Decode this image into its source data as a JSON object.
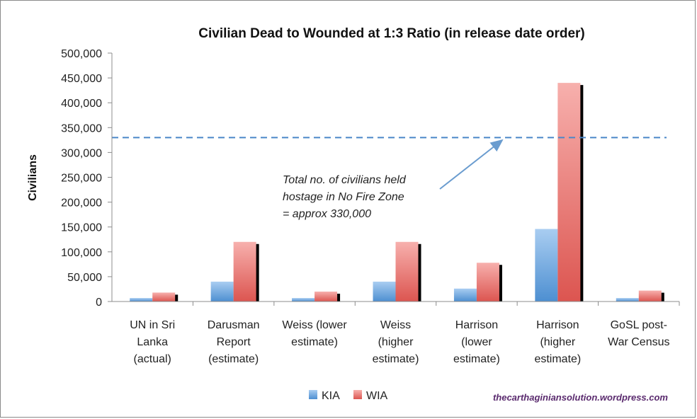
{
  "chart_data": {
    "type": "bar",
    "title": "Civilian Dead to Wounded at 1:3 Ratio (in release date order)",
    "ylabel": "Civilians",
    "xlabel": "",
    "ylim": [
      0,
      500000
    ],
    "yticks": [
      0,
      50000,
      100000,
      150000,
      200000,
      250000,
      300000,
      350000,
      400000,
      450000,
      500000
    ],
    "ytick_labels": [
      "0",
      "50,000",
      "100,000",
      "150,000",
      "200,000",
      "250,000",
      "300,000",
      "350,000",
      "400,000",
      "450,000",
      "500,000"
    ],
    "categories": [
      [
        "UN in Sri",
        "Lanka",
        "(actual)"
      ],
      [
        "Darusman",
        "Report",
        "(estimate)"
      ],
      [
        "Weiss (lower",
        "estimate)"
      ],
      [
        "Weiss",
        "(higher",
        "estimate)"
      ],
      [
        "Harrison",
        "(lower",
        "estimate)"
      ],
      [
        "Harrison",
        "(higher",
        "estimate)"
      ],
      [
        "GoSL post-",
        "War Census"
      ]
    ],
    "series": [
      {
        "name": "KIA",
        "color": "#5b9bd5",
        "values": [
          7000,
          40000,
          7000,
          40000,
          26000,
          146000,
          7000
        ]
      },
      {
        "name": "WIA",
        "color": "#e8706c",
        "values": [
          18000,
          120000,
          20000,
          120000,
          78000,
          440000,
          22000
        ]
      }
    ],
    "reference_line": {
      "value": 330000,
      "style": "dashed",
      "color": "#4a86c8"
    },
    "annotation": {
      "lines": [
        "Total no. of civilians held",
        "hostage in No Fire Zone",
        "= approx 330,000"
      ]
    },
    "legend": {
      "position": "bottom-center"
    },
    "grid": false
  },
  "watermark": "thecarthaginiansolution.wordpress.com"
}
